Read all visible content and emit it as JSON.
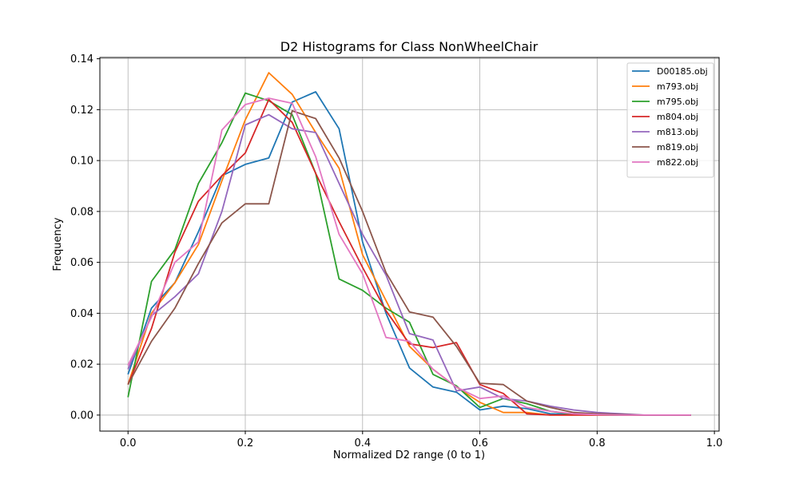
{
  "chart_data": {
    "type": "line",
    "title": "D2 Histograms for Class NonWheelChair",
    "xlabel": "Normalized D2 range (0 to 1)",
    "ylabel": "Frequency",
    "xlim": [
      -0.048,
      1.008
    ],
    "ylim": [
      -0.0063,
      0.1405
    ],
    "xticks": [
      "0.0",
      "0.2",
      "0.4",
      "0.6",
      "0.8",
      "1.0"
    ],
    "yticks": [
      "0.00",
      "0.02",
      "0.04",
      "0.06",
      "0.08",
      "0.10",
      "0.12",
      "0.14"
    ],
    "grid": true,
    "legend_position": "top-right",
    "x": [
      0.0,
      0.04,
      0.08,
      0.12,
      0.16,
      0.2,
      0.24,
      0.28,
      0.32,
      0.36,
      0.4,
      0.44,
      0.48,
      0.52,
      0.56,
      0.6,
      0.64,
      0.68,
      0.72,
      0.76,
      0.8,
      0.84,
      0.88,
      0.92,
      0.96
    ],
    "series": [
      {
        "name": "D00185.obj",
        "color": "#1f77b4",
        "values": [
          0.016,
          0.042,
          0.052,
          0.072,
          0.094,
          0.0985,
          0.101,
          0.123,
          0.127,
          0.1125,
          0.068,
          0.04,
          0.0185,
          0.011,
          0.009,
          0.002,
          0.0035,
          0.0025,
          0.0005,
          0.0002,
          0.0001,
          0.0,
          0.0,
          0.0,
          0.0
        ]
      },
      {
        "name": "m793.obj",
        "color": "#ff7f0e",
        "values": [
          0.012,
          0.04,
          0.052,
          0.067,
          0.092,
          0.116,
          0.1345,
          0.126,
          0.111,
          0.097,
          0.063,
          0.045,
          0.027,
          0.018,
          0.011,
          0.005,
          0.001,
          0.001,
          0.0,
          0.0,
          0.0,
          0.0,
          0.0,
          0.0,
          0.0
        ]
      },
      {
        "name": "m795.obj",
        "color": "#2ca02c",
        "values": [
          0.007,
          0.0525,
          0.065,
          0.091,
          0.107,
          0.1265,
          0.1235,
          0.118,
          0.095,
          0.0535,
          0.049,
          0.042,
          0.0365,
          0.016,
          0.0115,
          0.003,
          0.0065,
          0.0045,
          0.0015,
          0.0002,
          0.0001,
          0.0,
          0.0,
          0.0,
          0.0
        ]
      },
      {
        "name": "m804.obj",
        "color": "#d62728",
        "values": [
          0.012,
          0.034,
          0.064,
          0.084,
          0.094,
          0.103,
          0.124,
          0.115,
          0.095,
          0.076,
          0.058,
          0.041,
          0.028,
          0.0265,
          0.0285,
          0.012,
          0.0085,
          0.0005,
          0.0,
          0.0,
          0.0,
          0.0,
          0.0,
          0.0,
          0.0
        ]
      },
      {
        "name": "m813.obj",
        "color": "#9467bd",
        "values": [
          0.018,
          0.039,
          0.0465,
          0.0555,
          0.08,
          0.114,
          0.118,
          0.1125,
          0.111,
          0.091,
          0.071,
          0.055,
          0.032,
          0.0295,
          0.0095,
          0.011,
          0.0065,
          0.0055,
          0.0035,
          0.002,
          0.001,
          0.0005,
          0.0,
          0.0,
          0.0
        ]
      },
      {
        "name": "m819.obj",
        "color": "#8c564b",
        "values": [
          0.012,
          0.029,
          0.042,
          0.0595,
          0.0755,
          0.083,
          0.083,
          0.1195,
          0.1165,
          0.101,
          0.08,
          0.056,
          0.0405,
          0.0385,
          0.027,
          0.0125,
          0.012,
          0.0055,
          0.003,
          0.001,
          0.0005,
          0.0002,
          0.0,
          0.0,
          0.0
        ]
      },
      {
        "name": "m822.obj",
        "color": "#e377c2",
        "values": [
          0.0195,
          0.0385,
          0.06,
          0.068,
          0.112,
          0.122,
          0.1245,
          0.1225,
          0.1015,
          0.071,
          0.0555,
          0.0305,
          0.029,
          0.018,
          0.011,
          0.0065,
          0.0075,
          0.003,
          0.0015,
          0.0005,
          0.0002,
          0.0,
          0.0,
          0.0,
          0.0
        ]
      }
    ]
  }
}
